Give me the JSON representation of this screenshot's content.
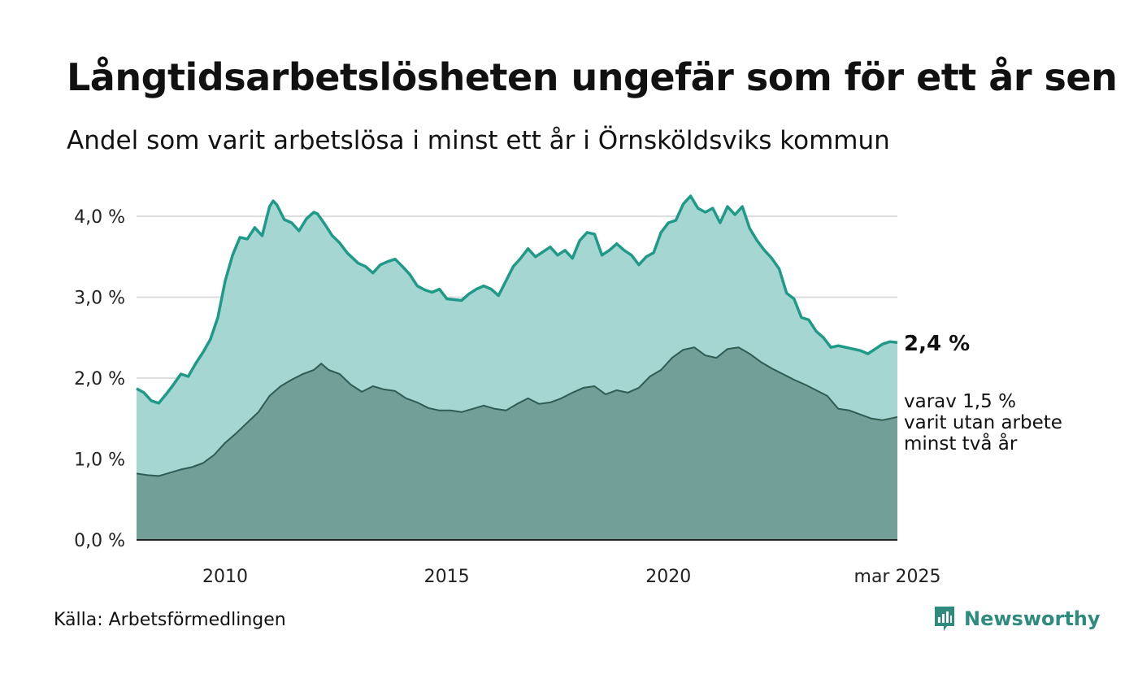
{
  "title": "Långtidsarbetslösheten ungefär som för ett år sen",
  "subtitle": "Andel som varit arbetslösa i minst ett år i Örnsköldsviks kommun",
  "source": "Källa: Arbetsförmedlingen",
  "brand": "Newsworthy",
  "annotation": {
    "value_label": "2,4 %",
    "sub_lines": [
      "varav 1,5 %",
      "varit utan arbete",
      "minst två år"
    ]
  },
  "colors": {
    "series1_line": "#1f9a88",
    "series1_fill": "#a6d6d1",
    "series2_line": "#2f5c55",
    "series2_fill": "#729f97",
    "grid": "#dddddd",
    "brand": "#2e8b7e"
  },
  "chart_data": {
    "type": "area",
    "ylim": [
      0,
      4
    ],
    "xlim": [
      "2008-01",
      "2025-03"
    ],
    "y_ticks": [
      {
        "value": 0,
        "label": "0,0 %"
      },
      {
        "value": 1,
        "label": "1,0 %"
      },
      {
        "value": 2,
        "label": "2,0 %"
      },
      {
        "value": 3,
        "label": "3,0 %"
      },
      {
        "value": 4,
        "label": "4,0 %"
      }
    ],
    "x_ticks": [
      {
        "value": "2010-01",
        "label": "2010"
      },
      {
        "value": "2015-01",
        "label": "2015"
      },
      {
        "value": "2020-01",
        "label": "2020"
      },
      {
        "value": "2025-03",
        "label": "mar 2025"
      }
    ],
    "grid": true,
    "series": [
      {
        "values": [
          [
            "2008-01",
            1.87
          ],
          [
            "2008-03",
            1.82
          ],
          [
            "2008-05",
            1.72
          ],
          [
            "2008-07",
            1.69
          ],
          [
            "2008-09",
            1.8
          ],
          [
            "2008-11",
            1.92
          ],
          [
            "2009-01",
            2.05
          ],
          [
            "2009-03",
            2.02
          ],
          [
            "2009-05",
            2.18
          ],
          [
            "2009-07",
            2.32
          ],
          [
            "2009-09",
            2.48
          ],
          [
            "2009-11",
            2.75
          ],
          [
            "2010-01",
            3.2
          ],
          [
            "2010-03",
            3.52
          ],
          [
            "2010-05",
            3.74
          ],
          [
            "2010-07",
            3.72
          ],
          [
            "2010-09",
            3.86
          ],
          [
            "2010-11",
            3.76
          ],
          [
            "2011-01",
            4.12
          ],
          [
            "2011-02",
            4.19
          ],
          [
            "2011-03",
            4.14
          ],
          [
            "2011-05",
            3.96
          ],
          [
            "2011-07",
            3.92
          ],
          [
            "2011-09",
            3.82
          ],
          [
            "2011-11",
            3.97
          ],
          [
            "2012-01",
            4.05
          ],
          [
            "2012-02",
            4.03
          ],
          [
            "2012-04",
            3.9
          ],
          [
            "2012-06",
            3.76
          ],
          [
            "2012-08",
            3.67
          ],
          [
            "2012-10",
            3.55
          ],
          [
            "2013-01",
            3.42
          ],
          [
            "2013-03",
            3.38
          ],
          [
            "2013-05",
            3.3
          ],
          [
            "2013-07",
            3.4
          ],
          [
            "2013-09",
            3.44
          ],
          [
            "2013-11",
            3.47
          ],
          [
            "2014-01",
            3.38
          ],
          [
            "2014-03",
            3.28
          ],
          [
            "2014-05",
            3.14
          ],
          [
            "2014-07",
            3.09
          ],
          [
            "2014-09",
            3.06
          ],
          [
            "2014-11",
            3.1
          ],
          [
            "2015-01",
            2.98
          ],
          [
            "2015-03",
            2.97
          ],
          [
            "2015-05",
            2.96
          ],
          [
            "2015-07",
            3.04
          ],
          [
            "2015-09",
            3.1
          ],
          [
            "2015-11",
            3.14
          ],
          [
            "2016-01",
            3.1
          ],
          [
            "2016-03",
            3.02
          ],
          [
            "2016-05",
            3.2
          ],
          [
            "2016-07",
            3.38
          ],
          [
            "2016-09",
            3.48
          ],
          [
            "2016-11",
            3.6
          ],
          [
            "2017-01",
            3.5
          ],
          [
            "2017-03",
            3.56
          ],
          [
            "2017-05",
            3.62
          ],
          [
            "2017-07",
            3.52
          ],
          [
            "2017-09",
            3.58
          ],
          [
            "2017-11",
            3.48
          ],
          [
            "2018-01",
            3.7
          ],
          [
            "2018-03",
            3.8
          ],
          [
            "2018-05",
            3.78
          ],
          [
            "2018-07",
            3.52
          ],
          [
            "2018-09",
            3.58
          ],
          [
            "2018-11",
            3.66
          ],
          [
            "2019-01",
            3.58
          ],
          [
            "2019-03",
            3.52
          ],
          [
            "2019-05",
            3.4
          ],
          [
            "2019-07",
            3.5
          ],
          [
            "2019-09",
            3.55
          ],
          [
            "2019-11",
            3.8
          ],
          [
            "2020-01",
            3.92
          ],
          [
            "2020-03",
            3.95
          ],
          [
            "2020-05",
            4.15
          ],
          [
            "2020-07",
            4.25
          ],
          [
            "2020-09",
            4.1
          ],
          [
            "2020-11",
            4.05
          ],
          [
            "2021-01",
            4.1
          ],
          [
            "2021-03",
            3.92
          ],
          [
            "2021-05",
            4.12
          ],
          [
            "2021-07",
            4.02
          ],
          [
            "2021-09",
            4.12
          ],
          [
            "2021-11",
            3.85
          ],
          [
            "2022-01",
            3.7
          ],
          [
            "2022-03",
            3.58
          ],
          [
            "2022-05",
            3.48
          ],
          [
            "2022-07",
            3.35
          ],
          [
            "2022-09",
            3.05
          ],
          [
            "2022-11",
            2.98
          ],
          [
            "2023-01",
            2.75
          ],
          [
            "2023-03",
            2.72
          ],
          [
            "2023-05",
            2.58
          ],
          [
            "2023-07",
            2.5
          ],
          [
            "2023-09",
            2.38
          ],
          [
            "2023-11",
            2.4
          ],
          [
            "2024-01",
            2.38
          ],
          [
            "2024-03",
            2.36
          ],
          [
            "2024-05",
            2.34
          ],
          [
            "2024-07",
            2.3
          ],
          [
            "2024-09",
            2.36
          ],
          [
            "2024-11",
            2.42
          ],
          [
            "2025-01",
            2.45
          ],
          [
            "2025-03",
            2.44
          ]
        ]
      },
      {
        "values": [
          [
            "2008-01",
            0.82
          ],
          [
            "2008-04",
            0.8
          ],
          [
            "2008-07",
            0.79
          ],
          [
            "2008-10",
            0.83
          ],
          [
            "2009-01",
            0.87
          ],
          [
            "2009-04",
            0.9
          ],
          [
            "2009-07",
            0.95
          ],
          [
            "2009-10",
            1.05
          ],
          [
            "2010-01",
            1.2
          ],
          [
            "2010-04",
            1.32
          ],
          [
            "2010-07",
            1.45
          ],
          [
            "2010-10",
            1.58
          ],
          [
            "2011-01",
            1.78
          ],
          [
            "2011-04",
            1.9
          ],
          [
            "2011-07",
            1.98
          ],
          [
            "2011-10",
            2.05
          ],
          [
            "2012-01",
            2.1
          ],
          [
            "2012-03",
            2.18
          ],
          [
            "2012-05",
            2.1
          ],
          [
            "2012-08",
            2.05
          ],
          [
            "2012-11",
            1.92
          ],
          [
            "2013-02",
            1.83
          ],
          [
            "2013-05",
            1.9
          ],
          [
            "2013-08",
            1.86
          ],
          [
            "2013-11",
            1.84
          ],
          [
            "2014-02",
            1.75
          ],
          [
            "2014-05",
            1.7
          ],
          [
            "2014-08",
            1.63
          ],
          [
            "2014-11",
            1.6
          ],
          [
            "2015-02",
            1.6
          ],
          [
            "2015-05",
            1.58
          ],
          [
            "2015-08",
            1.62
          ],
          [
            "2015-11",
            1.66
          ],
          [
            "2016-02",
            1.62
          ],
          [
            "2016-05",
            1.6
          ],
          [
            "2016-08",
            1.68
          ],
          [
            "2016-11",
            1.75
          ],
          [
            "2017-02",
            1.68
          ],
          [
            "2017-05",
            1.7
          ],
          [
            "2017-08",
            1.75
          ],
          [
            "2017-11",
            1.82
          ],
          [
            "2018-02",
            1.88
          ],
          [
            "2018-05",
            1.9
          ],
          [
            "2018-08",
            1.8
          ],
          [
            "2018-11",
            1.85
          ],
          [
            "2019-02",
            1.82
          ],
          [
            "2019-05",
            1.88
          ],
          [
            "2019-08",
            2.02
          ],
          [
            "2019-11",
            2.1
          ],
          [
            "2020-02",
            2.25
          ],
          [
            "2020-05",
            2.35
          ],
          [
            "2020-08",
            2.38
          ],
          [
            "2020-11",
            2.28
          ],
          [
            "2021-02",
            2.25
          ],
          [
            "2021-05",
            2.36
          ],
          [
            "2021-08",
            2.38
          ],
          [
            "2021-11",
            2.3
          ],
          [
            "2022-02",
            2.2
          ],
          [
            "2022-05",
            2.12
          ],
          [
            "2022-08",
            2.05
          ],
          [
            "2022-11",
            1.98
          ],
          [
            "2023-02",
            1.92
          ],
          [
            "2023-05",
            1.85
          ],
          [
            "2023-08",
            1.78
          ],
          [
            "2023-11",
            1.62
          ],
          [
            "2024-02",
            1.6
          ],
          [
            "2024-05",
            1.55
          ],
          [
            "2024-08",
            1.5
          ],
          [
            "2024-11",
            1.48
          ],
          [
            "2025-01",
            1.5
          ],
          [
            "2025-03",
            1.52
          ]
        ]
      }
    ]
  }
}
